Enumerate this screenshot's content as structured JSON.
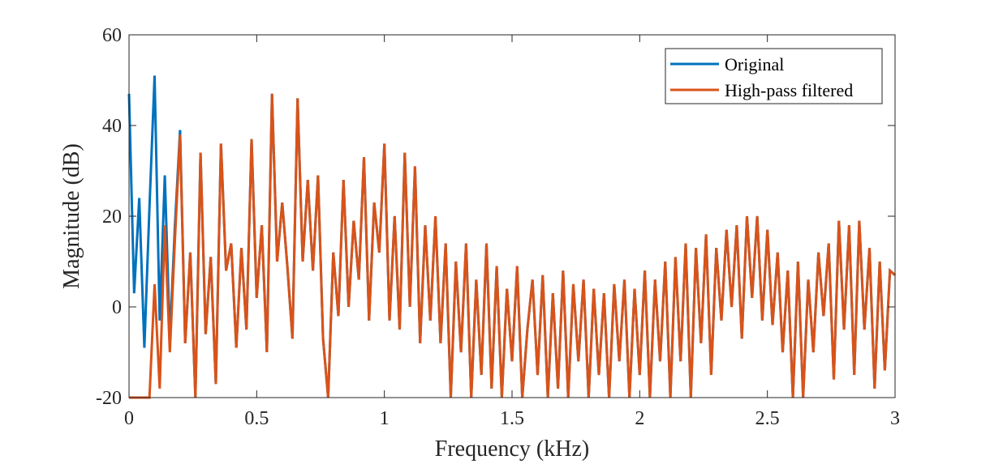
{
  "chart_data": {
    "type": "line",
    "xlabel": "Frequency (kHz)",
    "ylabel": "Magnitude (dB)",
    "xlim": [
      0,
      3
    ],
    "ylim": [
      -20,
      60
    ],
    "xticks": [
      "0",
      "0.5",
      "1",
      "1.5",
      "2",
      "2.5",
      "3"
    ],
    "xtick_values": [
      0,
      0.5,
      1,
      1.5,
      2,
      2.5,
      3
    ],
    "yticks": [
      "-20",
      "0",
      "20",
      "40",
      "60"
    ],
    "ytick_values": [
      -20,
      0,
      20,
      40,
      60
    ],
    "grid": false,
    "legend_position": "top-right",
    "x_start": 0,
    "x_step": 0.02,
    "series": [
      {
        "name": "Original",
        "color": "#0072BD",
        "values": [
          47,
          3,
          24,
          -9,
          22,
          51,
          -3,
          29,
          -7,
          18,
          39,
          -8,
          12,
          -20,
          34,
          -6,
          11,
          -17,
          36,
          8,
          14,
          -9,
          13,
          -5,
          37,
          2,
          18,
          -10,
          47,
          10,
          23,
          9,
          -7,
          46,
          10,
          28,
          8,
          29,
          -7,
          -20,
          12,
          -2,
          28,
          0,
          19,
          6,
          33,
          -3,
          23,
          12,
          36,
          -3,
          20,
          -5,
          34,
          0,
          31,
          -8,
          18,
          -3,
          20,
          -8,
          14,
          -20,
          10,
          -10,
          14,
          -20,
          6,
          -15,
          14,
          -18,
          9,
          -20,
          4,
          -12,
          9,
          -20,
          -5,
          6,
          -15,
          7,
          -20,
          3,
          -18,
          8,
          -20,
          5,
          -12,
          6,
          -20,
          4,
          -15,
          3,
          -20,
          5,
          -12,
          6,
          -20,
          4,
          -15,
          8,
          -20,
          6,
          -12,
          10,
          -20,
          11,
          -12,
          14,
          -20,
          13,
          -8,
          16,
          -15,
          13,
          -3,
          17,
          0,
          18,
          -7,
          20,
          2,
          20,
          -3,
          17,
          -4,
          12,
          -10,
          8,
          -20,
          10,
          -20,
          6,
          -10,
          12,
          -2,
          14,
          -16,
          19,
          -5,
          18,
          -15,
          19,
          -5,
          13,
          -18,
          10,
          -14,
          8,
          7
        ]
      },
      {
        "name": "High-pass filtered",
        "color": "#D95319",
        "values": [
          -20,
          -20,
          -20,
          -20,
          -20,
          5,
          -18,
          18,
          -10,
          15,
          38,
          -8,
          12,
          -20,
          34,
          -6,
          11,
          -17,
          36,
          8,
          14,
          -9,
          13,
          -5,
          37,
          2,
          18,
          -10,
          47,
          10,
          23,
          9,
          -7,
          46,
          10,
          28,
          8,
          29,
          -7,
          -20,
          12,
          -2,
          28,
          0,
          19,
          6,
          33,
          -3,
          23,
          12,
          36,
          -3,
          20,
          -5,
          34,
          0,
          31,
          -8,
          18,
          -3,
          20,
          -8,
          14,
          -20,
          10,
          -10,
          14,
          -20,
          6,
          -15,
          14,
          -18,
          9,
          -20,
          4,
          -12,
          9,
          -20,
          -5,
          6,
          -15,
          7,
          -20,
          3,
          -18,
          8,
          -20,
          5,
          -12,
          6,
          -20,
          4,
          -15,
          3,
          -20,
          5,
          -12,
          6,
          -20,
          4,
          -15,
          8,
          -20,
          6,
          -12,
          10,
          -20,
          11,
          -12,
          14,
          -20,
          13,
          -8,
          16,
          -15,
          13,
          -3,
          17,
          0,
          18,
          -7,
          20,
          2,
          20,
          -3,
          17,
          -4,
          12,
          -10,
          8,
          -20,
          10,
          -20,
          6,
          -10,
          12,
          -2,
          14,
          -16,
          19,
          -5,
          18,
          -15,
          19,
          -5,
          13,
          -18,
          10,
          -14,
          8,
          7
        ]
      }
    ]
  }
}
